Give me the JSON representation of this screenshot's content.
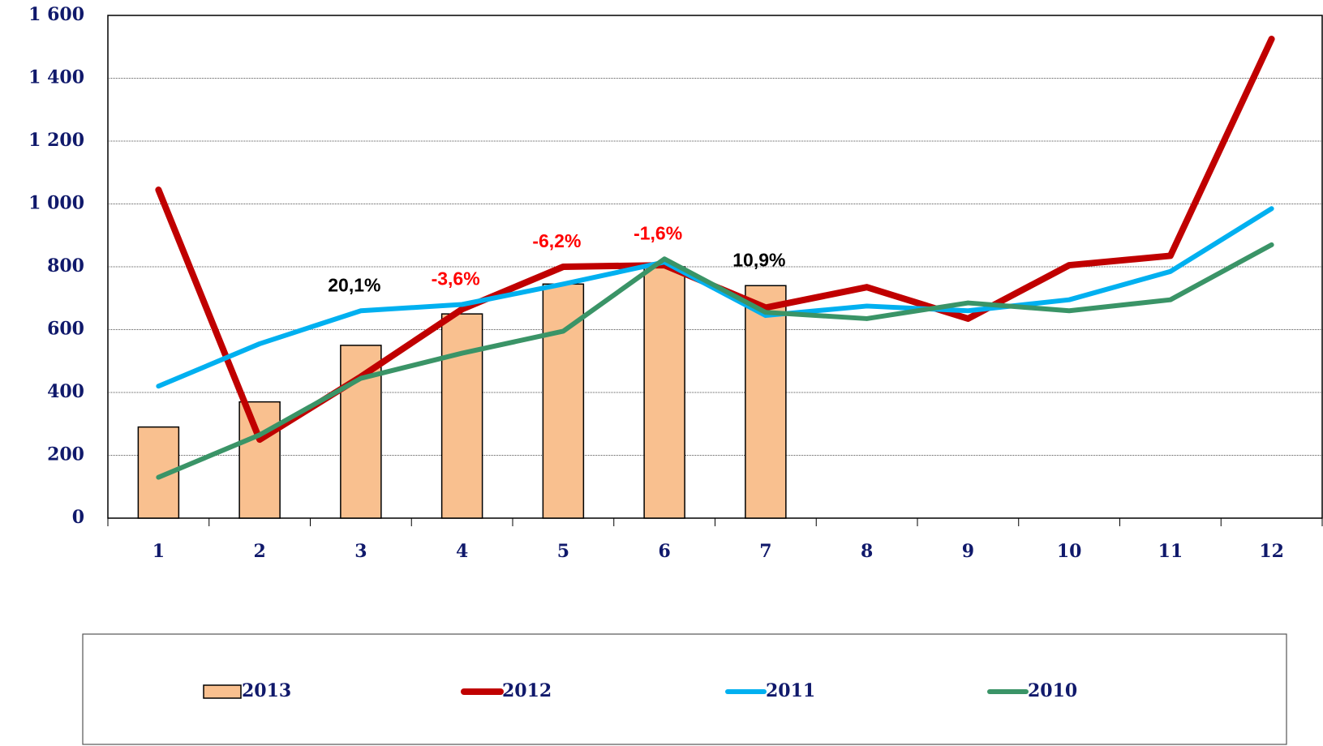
{
  "chart_data": {
    "type": "bar-line",
    "categories": [
      "1",
      "2",
      "3",
      "4",
      "5",
      "6",
      "7",
      "8",
      "9",
      "10",
      "11",
      "12"
    ],
    "series": [
      {
        "name": "2013",
        "type": "bar",
        "color": "#f9c08f",
        "values": [
          290,
          370,
          550,
          650,
          745,
          800,
          740,
          null,
          null,
          null,
          null,
          null
        ]
      },
      {
        "name": "2012",
        "type": "line",
        "color": "#c00000",
        "values": [
          1045,
          250,
          450,
          665,
          800,
          805,
          670,
          735,
          635,
          805,
          835,
          1525
        ]
      },
      {
        "name": "2011",
        "type": "line",
        "color": "#00b0f0",
        "values": [
          420,
          555,
          660,
          680,
          745,
          815,
          645,
          675,
          660,
          695,
          785,
          985
        ]
      },
      {
        "name": "2010",
        "type": "line",
        "color": "#3a9467",
        "values": [
          130,
          265,
          445,
          525,
          595,
          825,
          655,
          635,
          685,
          660,
          695,
          870
        ]
      }
    ],
    "annotations": [
      {
        "category": "3",
        "text": "20,1%",
        "color": "#000000"
      },
      {
        "category": "4",
        "text": "-3,6%",
        "color": "#ff0000"
      },
      {
        "category": "5",
        "text": "-6,2%",
        "color": "#ff0000"
      },
      {
        "category": "6",
        "text": "-1,6%",
        "color": "#ff0000"
      },
      {
        "category": "7",
        "text": "10,9%",
        "color": "#000000"
      }
    ],
    "ylim": [
      0,
      1600
    ],
    "yticks": [
      0,
      200,
      400,
      600,
      800,
      {
        "value": 1000,
        "label": "1 000"
      },
      {
        "value": 1200,
        "label": "1 200"
      },
      {
        "value": 1400,
        "label": "1 400"
      },
      {
        "value": 1600,
        "label": "1 600"
      }
    ],
    "grid": true,
    "legend": "bottom"
  }
}
